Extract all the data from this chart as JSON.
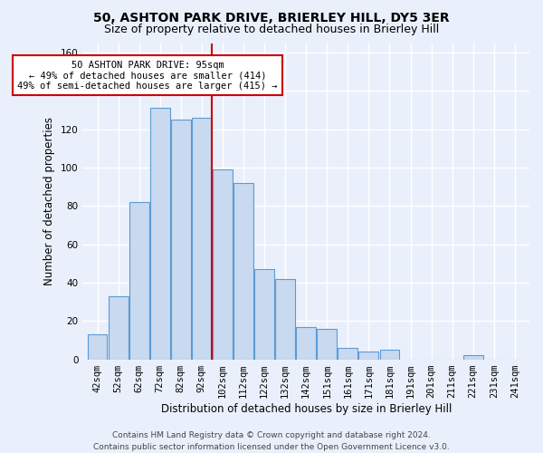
{
  "title": "50, ASHTON PARK DRIVE, BRIERLEY HILL, DY5 3ER",
  "subtitle": "Size of property relative to detached houses in Brierley Hill",
  "xlabel": "Distribution of detached houses by size in Brierley Hill",
  "ylabel": "Number of detached properties",
  "bar_labels": [
    "42sqm",
    "52sqm",
    "62sqm",
    "72sqm",
    "82sqm",
    "92sqm",
    "102sqm",
    "112sqm",
    "122sqm",
    "132sqm",
    "142sqm",
    "151sqm",
    "161sqm",
    "171sqm",
    "181sqm",
    "191sqm",
    "201sqm",
    "211sqm",
    "221sqm",
    "231sqm",
    "241sqm"
  ],
  "bar_values": [
    13,
    33,
    82,
    131,
    125,
    126,
    99,
    92,
    47,
    42,
    17,
    16,
    6,
    4,
    5,
    0,
    0,
    0,
    2,
    0,
    0
  ],
  "bar_color": "#c8d9f0",
  "bar_edge_color": "#5b9bd5",
  "background_color": "#eaf0fb",
  "grid_color": "#ffffff",
  "red_line_x": 5.5,
  "annotation_text": "50 ASHTON PARK DRIVE: 95sqm\n← 49% of detached houses are smaller (414)\n49% of semi-detached houses are larger (415) →",
  "annotation_box_color": "#ffffff",
  "annotation_box_edge": "#cc0000",
  "ylim": [
    0,
    165
  ],
  "yticks": [
    0,
    20,
    40,
    60,
    80,
    100,
    120,
    140,
    160
  ],
  "footer": "Contains HM Land Registry data © Crown copyright and database right 2024.\nContains public sector information licensed under the Open Government Licence v3.0.",
  "title_fontsize": 10,
  "subtitle_fontsize": 9,
  "xlabel_fontsize": 8.5,
  "ylabel_fontsize": 8.5,
  "tick_fontsize": 7.5,
  "footer_fontsize": 6.5,
  "annotation_fontsize": 7.5
}
